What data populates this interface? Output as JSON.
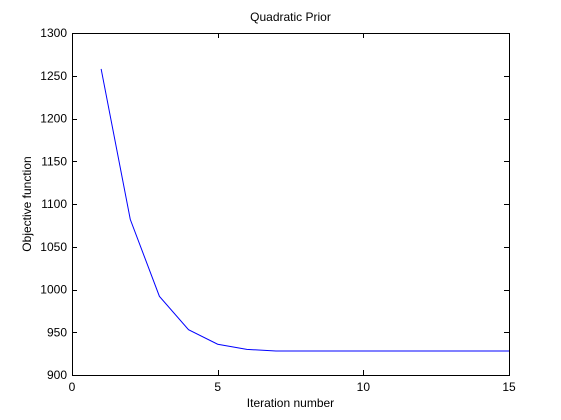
{
  "chart_data": {
    "type": "line",
    "title": "Quadratic Prior",
    "xlabel": "Iteration number",
    "ylabel": "Objective function",
    "xlim": [
      0,
      15
    ],
    "ylim": [
      900,
      1300
    ],
    "xticks": [
      0,
      5,
      10,
      15
    ],
    "yticks": [
      900,
      950,
      1000,
      1050,
      1100,
      1150,
      1200,
      1250,
      1300
    ],
    "grid": false,
    "series": [
      {
        "color": "#0000ff",
        "x": [
          1,
          2,
          3,
          4,
          5,
          6,
          7,
          8,
          9,
          10,
          11,
          12,
          13,
          14,
          15
        ],
        "y": [
          1258,
          1082,
          992,
          953,
          936,
          930,
          928,
          928,
          928,
          928,
          928,
          928,
          928,
          928,
          928
        ]
      }
    ]
  }
}
